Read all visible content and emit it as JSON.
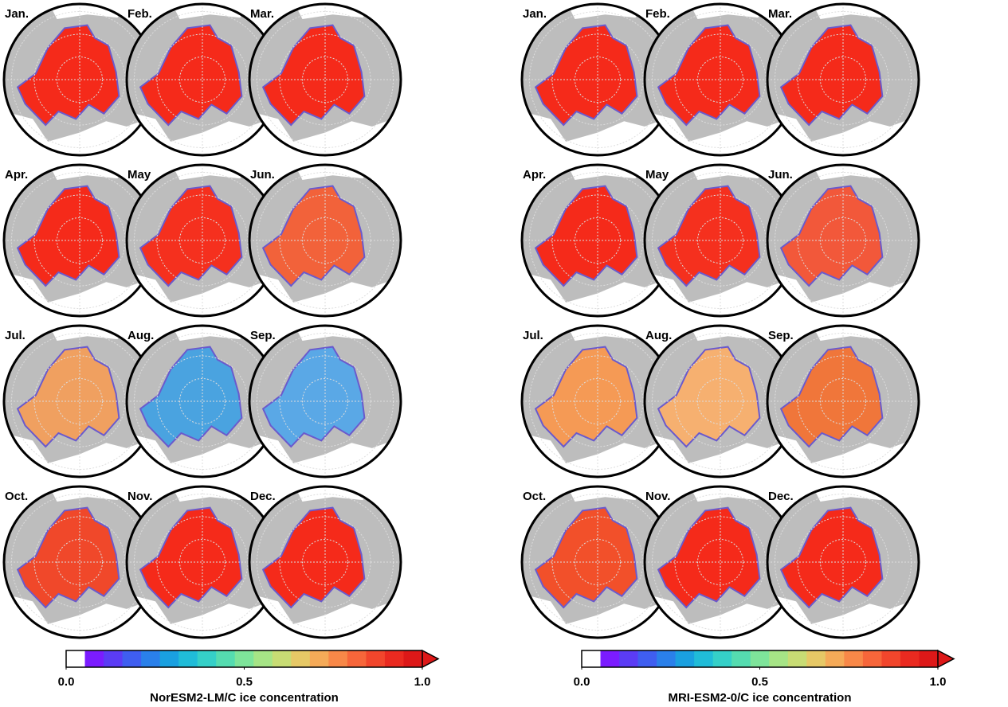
{
  "panels": [
    {
      "title": "NorESM2-LM/C ice concentration",
      "maps": [
        {
          "label": "Jan.",
          "ice_color": "#f52a1a"
        },
        {
          "label": "Feb.",
          "ice_color": "#f52a1a"
        },
        {
          "label": "Mar.",
          "ice_color": "#f52a1a"
        },
        {
          "label": "Apr.",
          "ice_color": "#f52a1a"
        },
        {
          "label": "May",
          "ice_color": "#f5301e"
        },
        {
          "label": "Jun.",
          "ice_color": "#f2623a"
        },
        {
          "label": "Jul.",
          "ice_color": "#f0a060"
        },
        {
          "label": "Aug.",
          "ice_color": "#4aa3e0"
        },
        {
          "label": "Sep.",
          "ice_color": "#5aa8e6"
        },
        {
          "label": "Oct.",
          "ice_color": "#f0482a"
        },
        {
          "label": "Nov.",
          "ice_color": "#f52a1a"
        },
        {
          "label": "Dec.",
          "ice_color": "#f52a1a"
        }
      ],
      "colorbar": {
        "clim": [
          0,
          1
        ],
        "ticks": [
          {
            "value": 0,
            "label": "0.0"
          },
          {
            "value": 0.5,
            "label": "0.5"
          },
          {
            "value": 1,
            "label": "1.0"
          }
        ],
        "colors": [
          "#ffffff",
          "#7b1cff",
          "#5b3cf5",
          "#3f5ef0",
          "#2a80ea",
          "#1aa0e0",
          "#20bcd8",
          "#35d0c8",
          "#55dcb0",
          "#7ee49a",
          "#a6e486",
          "#c8dc74",
          "#e6c866",
          "#f5aa58",
          "#f88848",
          "#f7663a",
          "#f2462c",
          "#ea2a20",
          "#dd1818"
        ]
      }
    },
    {
      "title": "MRI-ESM2-0/C ice concentration",
      "maps": [
        {
          "label": "Jan.",
          "ice_color": "#f52a1a"
        },
        {
          "label": "Feb.",
          "ice_color": "#f52a1a"
        },
        {
          "label": "Mar.",
          "ice_color": "#f52a1a"
        },
        {
          "label": "Apr.",
          "ice_color": "#f52a1a"
        },
        {
          "label": "May",
          "ice_color": "#f5301e"
        },
        {
          "label": "Jun.",
          "ice_color": "#f2583a"
        },
        {
          "label": "Jul.",
          "ice_color": "#f59a55"
        },
        {
          "label": "Aug.",
          "ice_color": "#f6b070"
        },
        {
          "label": "Sep.",
          "ice_color": "#f0763a"
        },
        {
          "label": "Oct.",
          "ice_color": "#f2502a"
        },
        {
          "label": "Nov.",
          "ice_color": "#f52a1a"
        },
        {
          "label": "Dec.",
          "ice_color": "#f52a1a"
        }
      ],
      "colorbar": {
        "clim": [
          0,
          1
        ],
        "ticks": [
          {
            "value": 0,
            "label": "0.0"
          },
          {
            "value": 0.5,
            "label": "0.5"
          },
          {
            "value": 1,
            "label": "1.0"
          }
        ],
        "colors": [
          "#ffffff",
          "#7b1cff",
          "#5b3cf5",
          "#3f5ef0",
          "#2a80ea",
          "#1aa0e0",
          "#20bcd8",
          "#35d0c8",
          "#55dcb0",
          "#7ee49a",
          "#a6e486",
          "#c8dc74",
          "#e6c866",
          "#f5aa58",
          "#f88848",
          "#f7663a",
          "#f2462c",
          "#ea2a20",
          "#dd1818"
        ]
      }
    }
  ]
}
